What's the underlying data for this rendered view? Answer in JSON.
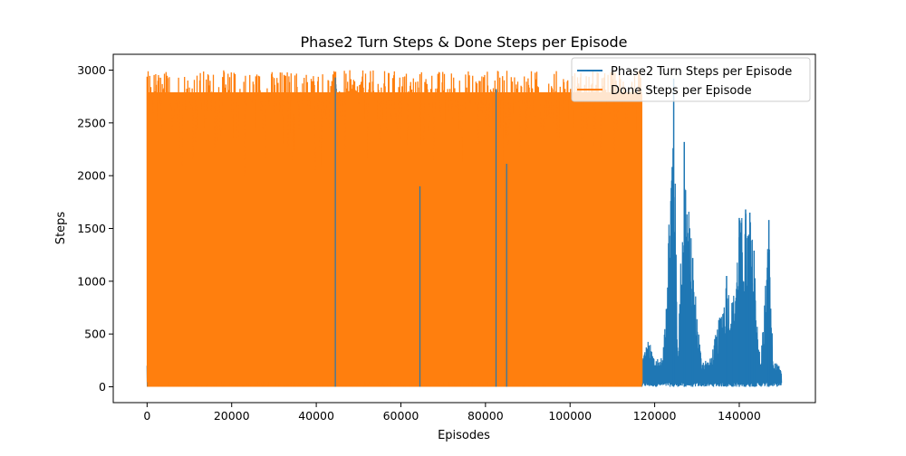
{
  "chart_data": {
    "type": "line",
    "title": "Phase2 Turn Steps & Done Steps per Episode",
    "xlabel": "Episodes",
    "ylabel": "Steps",
    "xlim": [
      -8000,
      158000
    ],
    "ylim": [
      -150,
      3150
    ],
    "xticks": [
      0,
      20000,
      40000,
      60000,
      80000,
      100000,
      120000,
      140000
    ],
    "yticks": [
      0,
      500,
      1000,
      1500,
      2000,
      2500,
      3000
    ],
    "grid": false,
    "legend_position": "top-right",
    "series": [
      {
        "name": "Phase2 Turn Steps per Episode",
        "color": "#1f77b4",
        "x_range": [
          0,
          150000
        ],
        "x": [
          0,
          5000,
          10000,
          20000,
          30000,
          40000,
          44500,
          50000,
          60000,
          70000,
          80000,
          82500,
          90000,
          100000,
          110000,
          117000,
          118500,
          120000,
          122000,
          124500,
          125500,
          127000,
          129000,
          131000,
          133000,
          135000,
          137000,
          138500,
          140000,
          141500,
          142500,
          143500,
          145000,
          147000,
          148000,
          150000
        ],
        "y": [
          200,
          300,
          500,
          600,
          700,
          700,
          2930,
          700,
          600,
          700,
          600,
          2820,
          700,
          600,
          500,
          300,
          450,
          300,
          280,
          2920,
          350,
          2320,
          1220,
          300,
          250,
          600,
          1050,
          800,
          1600,
          1680,
          1650,
          1290,
          200,
          1580,
          250,
          180
        ],
        "baseline_min": 0
      },
      {
        "name": "Done Steps per Episode",
        "color": "#ff7f0e",
        "x_range": [
          0,
          117000
        ],
        "y_max": 3000,
        "y_min": 0,
        "note_values": "dense oscillation between roughly 0 and 3000 steps across all episodes"
      }
    ]
  }
}
